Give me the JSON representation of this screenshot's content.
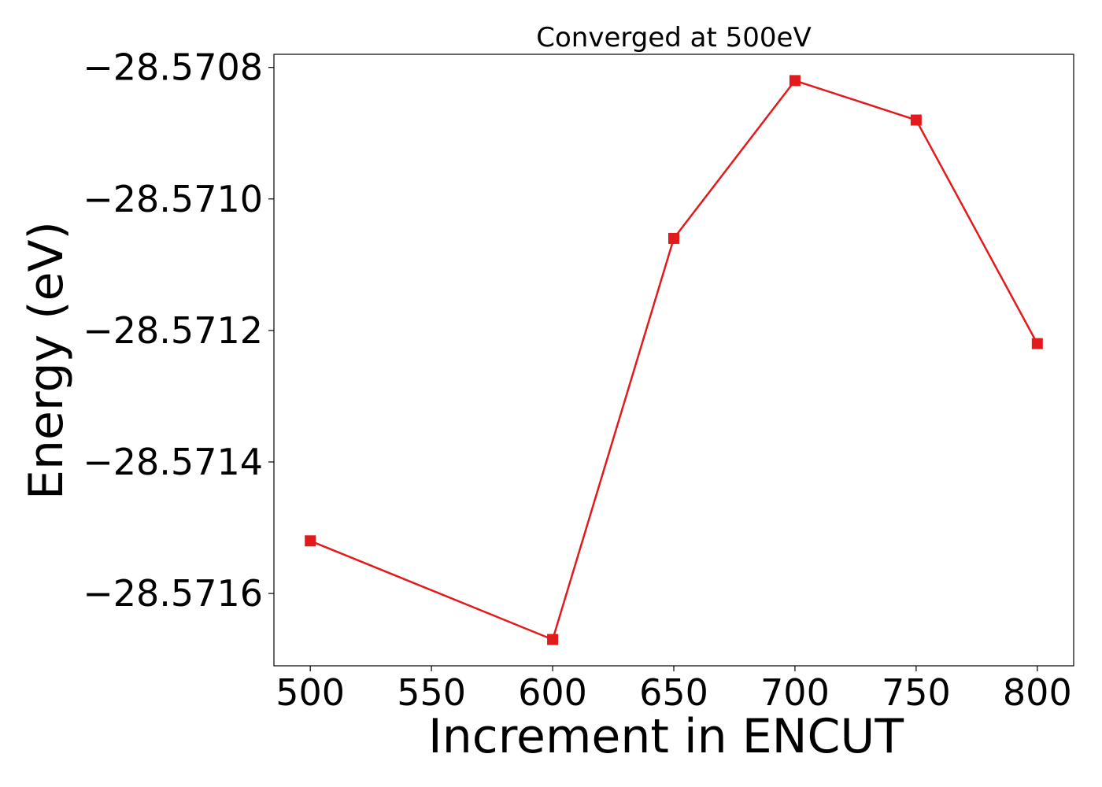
{
  "chart_data": {
    "type": "line",
    "title": "Converged at 500eV",
    "xlabel": "Increment in ENCUT",
    "ylabel": "Energy (eV)",
    "x": [
      500,
      600,
      650,
      700,
      750,
      800
    ],
    "series": [
      {
        "values": [
          -28.57152,
          -28.57167,
          -28.57106,
          -28.57082,
          -28.57088,
          -28.57122
        ],
        "color": "#e31a1c",
        "marker": "square"
      }
    ],
    "xlim": [
      485,
      815
    ],
    "ylim": [
      -28.57171,
      -28.57078
    ],
    "xticks": [
      500,
      550,
      600,
      650,
      700,
      750,
      800
    ],
    "xtick_labels": [
      "500",
      "550",
      "600",
      "650",
      "700",
      "750",
      "800"
    ],
    "yticks": [
      -28.5708,
      -28.571,
      -28.5712,
      -28.5714,
      -28.5716
    ],
    "ytick_labels": [
      "−28.5708",
      "−28.5710",
      "−28.5712",
      "−28.5714",
      "−28.5716"
    ],
    "grid": false,
    "legend": "none"
  }
}
